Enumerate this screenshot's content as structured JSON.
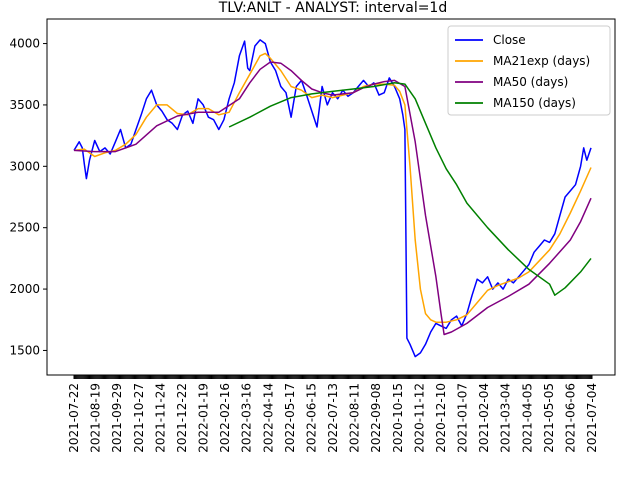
{
  "chart_data": {
    "type": "line",
    "title": "TLV:ANLT - ANALYST: interval=1d",
    "xlabel": "",
    "ylabel": "",
    "ylim": [
      1300,
      4200
    ],
    "yticks": [
      1500,
      2000,
      2500,
      3000,
      3500,
      4000
    ],
    "grid": false,
    "legend_position": "top-right",
    "x_tick_labels": [
      "2021-07-22",
      "2021-08-19",
      "2021-09-29",
      "2021-10-27",
      "2021-11-24",
      "2021-12-22",
      "2022-01-19",
      "2022-02-16",
      "2022-03-16",
      "2022-04-14",
      "2022-05-17",
      "2022-06-15",
      "2022-07-13",
      "2022-08-11",
      "2022-09-08",
      "2020-10-15",
      "2020-11-12",
      "2020-12-10",
      "2021-01-07",
      "2021-02-04",
      "2021-03-04",
      "2021-04-05",
      "2021-05-05",
      "2021-06-06",
      "2021-07-04"
    ],
    "x_count": 502,
    "series": [
      {
        "name": "Close",
        "color": "#0000ff",
        "points": [
          [
            0,
            3130
          ],
          [
            5,
            3200
          ],
          [
            8,
            3150
          ],
          [
            10,
            3020
          ],
          [
            12,
            2900
          ],
          [
            15,
            3050
          ],
          [
            20,
            3210
          ],
          [
            25,
            3120
          ],
          [
            30,
            3150
          ],
          [
            35,
            3100
          ],
          [
            40,
            3200
          ],
          [
            45,
            3300
          ],
          [
            50,
            3150
          ],
          [
            55,
            3180
          ],
          [
            60,
            3300
          ],
          [
            65,
            3420
          ],
          [
            70,
            3550
          ],
          [
            75,
            3620
          ],
          [
            80,
            3500
          ],
          [
            85,
            3450
          ],
          [
            90,
            3380
          ],
          [
            95,
            3350
          ],
          [
            100,
            3300
          ],
          [
            105,
            3420
          ],
          [
            110,
            3450
          ],
          [
            115,
            3350
          ],
          [
            120,
            3550
          ],
          [
            125,
            3500
          ],
          [
            130,
            3400
          ],
          [
            135,
            3380
          ],
          [
            140,
            3300
          ],
          [
            145,
            3380
          ],
          [
            150,
            3550
          ],
          [
            155,
            3680
          ],
          [
            160,
            3900
          ],
          [
            165,
            4020
          ],
          [
            168,
            3800
          ],
          [
            170,
            3780
          ],
          [
            175,
            3980
          ],
          [
            180,
            4030
          ],
          [
            185,
            4000
          ],
          [
            190,
            3850
          ],
          [
            195,
            3780
          ],
          [
            200,
            3650
          ],
          [
            205,
            3600
          ],
          [
            210,
            3400
          ],
          [
            215,
            3650
          ],
          [
            220,
            3700
          ],
          [
            225,
            3580
          ],
          [
            230,
            3450
          ],
          [
            235,
            3320
          ],
          [
            240,
            3650
          ],
          [
            245,
            3500
          ],
          [
            250,
            3600
          ],
          [
            255,
            3550
          ],
          [
            260,
            3620
          ],
          [
            265,
            3570
          ],
          [
            270,
            3600
          ],
          [
            275,
            3650
          ],
          [
            280,
            3700
          ],
          [
            285,
            3650
          ],
          [
            290,
            3680
          ],
          [
            295,
            3580
          ],
          [
            300,
            3600
          ],
          [
            305,
            3720
          ],
          [
            310,
            3650
          ],
          [
            315,
            3550
          ],
          [
            318,
            3420
          ],
          [
            320,
            3300
          ],
          [
            322,
            1600
          ],
          [
            325,
            1550
          ],
          [
            330,
            1450
          ],
          [
            335,
            1480
          ],
          [
            340,
            1550
          ],
          [
            345,
            1650
          ],
          [
            350,
            1720
          ],
          [
            355,
            1700
          ],
          [
            360,
            1680
          ],
          [
            365,
            1750
          ],
          [
            370,
            1780
          ],
          [
            375,
            1700
          ],
          [
            380,
            1800
          ],
          [
            385,
            1950
          ],
          [
            390,
            2080
          ],
          [
            395,
            2050
          ],
          [
            400,
            2100
          ],
          [
            405,
            2000
          ],
          [
            410,
            2050
          ],
          [
            415,
            2000
          ],
          [
            420,
            2080
          ],
          [
            425,
            2050
          ],
          [
            430,
            2100
          ],
          [
            435,
            2150
          ],
          [
            440,
            2200
          ],
          [
            445,
            2300
          ],
          [
            450,
            2350
          ],
          [
            455,
            2400
          ],
          [
            460,
            2380
          ],
          [
            465,
            2450
          ],
          [
            470,
            2600
          ],
          [
            475,
            2750
          ],
          [
            480,
            2800
          ],
          [
            485,
            2850
          ],
          [
            490,
            3000
          ],
          [
            493,
            3150
          ],
          [
            496,
            3050
          ],
          [
            500,
            3150
          ]
        ]
      },
      {
        "name": "MA21exp (days)",
        "color": "#ffa500",
        "points": [
          [
            0,
            3130
          ],
          [
            10,
            3140
          ],
          [
            20,
            3080
          ],
          [
            30,
            3110
          ],
          [
            40,
            3130
          ],
          [
            50,
            3180
          ],
          [
            60,
            3260
          ],
          [
            70,
            3400
          ],
          [
            80,
            3500
          ],
          [
            90,
            3500
          ],
          [
            100,
            3430
          ],
          [
            110,
            3420
          ],
          [
            120,
            3470
          ],
          [
            130,
            3470
          ],
          [
            140,
            3420
          ],
          [
            150,
            3440
          ],
          [
            160,
            3600
          ],
          [
            170,
            3750
          ],
          [
            180,
            3900
          ],
          [
            185,
            3920
          ],
          [
            190,
            3880
          ],
          [
            200,
            3780
          ],
          [
            210,
            3650
          ],
          [
            220,
            3620
          ],
          [
            230,
            3560
          ],
          [
            240,
            3580
          ],
          [
            250,
            3560
          ],
          [
            260,
            3580
          ],
          [
            270,
            3600
          ],
          [
            280,
            3650
          ],
          [
            290,
            3670
          ],
          [
            300,
            3670
          ],
          [
            310,
            3660
          ],
          [
            315,
            3610
          ],
          [
            320,
            3500
          ],
          [
            325,
            3000
          ],
          [
            330,
            2400
          ],
          [
            335,
            2000
          ],
          [
            340,
            1800
          ],
          [
            345,
            1750
          ],
          [
            350,
            1730
          ],
          [
            360,
            1730
          ],
          [
            370,
            1750
          ],
          [
            380,
            1790
          ],
          [
            390,
            1890
          ],
          [
            400,
            1990
          ],
          [
            410,
            2030
          ],
          [
            420,
            2060
          ],
          [
            430,
            2090
          ],
          [
            440,
            2140
          ],
          [
            450,
            2230
          ],
          [
            460,
            2320
          ],
          [
            470,
            2450
          ],
          [
            480,
            2620
          ],
          [
            490,
            2800
          ],
          [
            500,
            2990
          ]
        ]
      },
      {
        "name": "MA50 (days)",
        "color": "#800080",
        "points": [
          [
            0,
            3130
          ],
          [
            20,
            3120
          ],
          [
            40,
            3120
          ],
          [
            60,
            3180
          ],
          [
            80,
            3330
          ],
          [
            100,
            3410
          ],
          [
            120,
            3440
          ],
          [
            140,
            3440
          ],
          [
            160,
            3550
          ],
          [
            170,
            3680
          ],
          [
            180,
            3790
          ],
          [
            190,
            3850
          ],
          [
            200,
            3840
          ],
          [
            210,
            3780
          ],
          [
            220,
            3700
          ],
          [
            230,
            3630
          ],
          [
            240,
            3600
          ],
          [
            250,
            3580
          ],
          [
            260,
            3590
          ],
          [
            270,
            3600
          ],
          [
            280,
            3640
          ],
          [
            290,
            3670
          ],
          [
            300,
            3690
          ],
          [
            310,
            3700
          ],
          [
            320,
            3650
          ],
          [
            330,
            3200
          ],
          [
            340,
            2600
          ],
          [
            350,
            2100
          ],
          [
            355,
            1800
          ],
          [
            358,
            1630
          ],
          [
            365,
            1650
          ],
          [
            380,
            1720
          ],
          [
            400,
            1850
          ],
          [
            420,
            1940
          ],
          [
            440,
            2040
          ],
          [
            460,
            2210
          ],
          [
            480,
            2400
          ],
          [
            490,
            2550
          ],
          [
            500,
            2740
          ]
        ]
      },
      {
        "name": "MA150 (days)",
        "color": "#008000",
        "points": [
          [
            150,
            3320
          ],
          [
            170,
            3400
          ],
          [
            190,
            3490
          ],
          [
            210,
            3560
          ],
          [
            230,
            3590
          ],
          [
            250,
            3610
          ],
          [
            270,
            3630
          ],
          [
            290,
            3650
          ],
          [
            310,
            3680
          ],
          [
            320,
            3670
          ],
          [
            330,
            3550
          ],
          [
            340,
            3350
          ],
          [
            350,
            3150
          ],
          [
            360,
            2980
          ],
          [
            370,
            2850
          ],
          [
            380,
            2700
          ],
          [
            400,
            2500
          ],
          [
            420,
            2320
          ],
          [
            440,
            2160
          ],
          [
            460,
            2040
          ],
          [
            465,
            1950
          ],
          [
            475,
            2010
          ],
          [
            490,
            2140
          ],
          [
            500,
            2250
          ]
        ]
      }
    ]
  }
}
